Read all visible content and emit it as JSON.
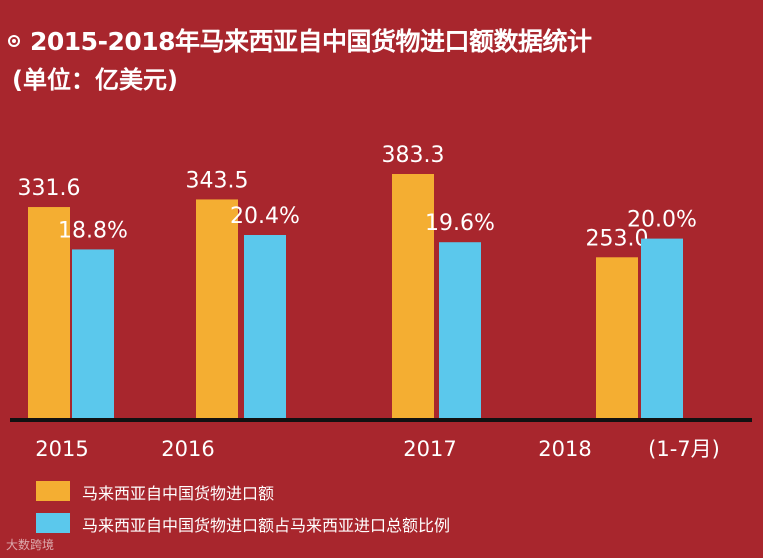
{
  "header": {
    "title": "2015-2018年马来西亚自中国货物进口额数据统计",
    "unit": "(单位：亿美元)"
  },
  "colors": {
    "background": "#a8262d",
    "import_bar": "#f4ae32",
    "share_bar": "#5bc8ec",
    "axis": "#111111"
  },
  "chart_data": {
    "type": "bar",
    "title": "2015-2018年马来西亚自中国货物进口额数据统计",
    "categories": [
      "2015",
      "2016",
      "2017",
      "2018"
    ],
    "category_note": "(1-7月)",
    "series": [
      {
        "name": "马来西亚自中国货物进口额",
        "unit": "亿美元",
        "values": [
          331.6,
          343.5,
          383.3,
          253.0
        ],
        "labels": [
          "331.6",
          "343.5",
          "383.3",
          "253.0"
        ]
      },
      {
        "name": "马来西亚自中国货物进口额占马来西亚进口总额比例",
        "unit": "%",
        "values": [
          18.8,
          20.4,
          19.6,
          20.0
        ],
        "labels": [
          "18.8%",
          "20.4%",
          "19.6%",
          "20.0%"
        ]
      }
    ],
    "legend": [
      "马来西亚自中国货物进口额",
      "马来西亚自中国货物进口额占马来西亚进口总额比例"
    ],
    "grid": false,
    "legend_position": "bottom-left"
  },
  "watermark": "大数跨境"
}
